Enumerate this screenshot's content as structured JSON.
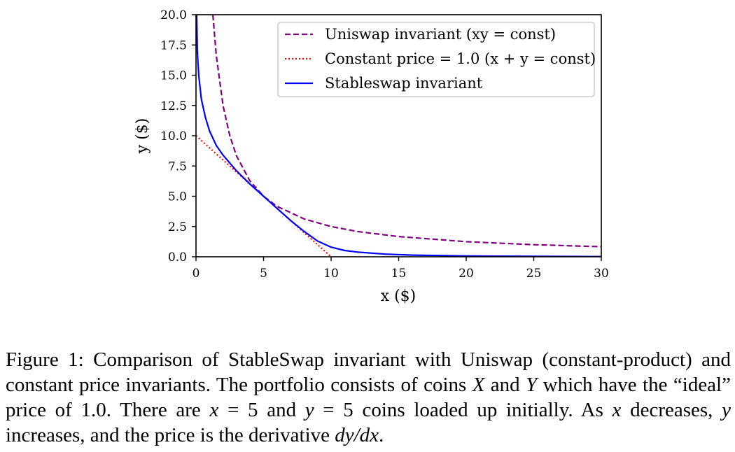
{
  "chart_data": {
    "type": "line",
    "xlabel": "x ($)",
    "ylabel": "y ($)",
    "xlim": [
      0,
      30
    ],
    "ylim": [
      0,
      20
    ],
    "xticks": [
      0,
      5,
      10,
      15,
      20,
      25,
      30
    ],
    "yticks": [
      "0.0",
      "2.5",
      "5.0",
      "7.5",
      "10.0",
      "12.5",
      "15.0",
      "17.5",
      "20.0"
    ],
    "grid": false,
    "legend_position": "top-right",
    "series": [
      {
        "name": "Uniswap invariant (xy = const)",
        "style": "dashed",
        "color": "#800080",
        "x": [
          1.25,
          1.5,
          2,
          2.5,
          3,
          4,
          5,
          6,
          8,
          10,
          12,
          15,
          20,
          25,
          30
        ],
        "y": [
          20.0,
          16.67,
          12.5,
          10.0,
          8.33,
          6.25,
          5.0,
          4.17,
          3.13,
          2.5,
          2.08,
          1.67,
          1.25,
          1.0,
          0.83
        ]
      },
      {
        "name": "Constant price = 1.0 (x + y = const)",
        "style": "dotted",
        "color": "#ff0000",
        "x": [
          0,
          10
        ],
        "y": [
          10,
          0
        ]
      },
      {
        "name": "Stableswap invariant",
        "style": "solid",
        "color": "#0000ff",
        "x": [
          0.05,
          0.1,
          0.2,
          0.4,
          0.7,
          1.0,
          1.5,
          2,
          3,
          4,
          5,
          6,
          7,
          8,
          9,
          10,
          11,
          12,
          14,
          16,
          20,
          25,
          30
        ],
        "y": [
          20.0,
          17.0,
          15.0,
          13.0,
          11.5,
          10.4,
          9.2,
          8.4,
          7.1,
          6.0,
          5.0,
          4.0,
          3.0,
          2.1,
          1.3,
          0.8,
          0.52,
          0.38,
          0.22,
          0.14,
          0.07,
          0.04,
          0.02
        ]
      }
    ]
  },
  "caption": {
    "label": "Figure 1:",
    "text_1": " Comparison of StableSwap invariant with Uniswap (constant-product) and constant price invariants. The portfolio consists of coins ",
    "coin_x": "X",
    "text_2": " and ",
    "coin_y": "Y",
    "text_3": " which have the “ideal” price of 1.0. There are ",
    "var_x": "x",
    "text_4": " = 5 and ",
    "var_y": "y",
    "text_5": " = 5 coins loaded up initially. As ",
    "var_x2": "x",
    "text_6": " decreases, ",
    "var_y2": "y",
    "text_7": " increases, and the price is the derivative ",
    "derivative": "dy/dx",
    "text_8": "."
  }
}
